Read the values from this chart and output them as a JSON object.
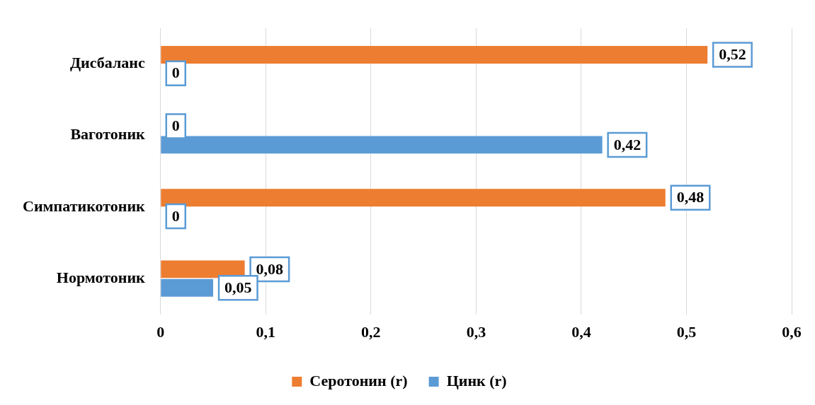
{
  "chart_data": {
    "type": "bar",
    "orientation": "horizontal",
    "categories": [
      "Дисбаланс",
      "Ваготоник",
      "Симпатикотоник",
      "Нормотоник"
    ],
    "series": [
      {
        "name": "Серотонин (r)",
        "color": "#ed7d31",
        "values": [
          0.52,
          0,
          0.48,
          0.08
        ],
        "value_labels": [
          "0,52",
          "0",
          "0,48",
          "0,08"
        ]
      },
      {
        "name": "Цинк (r)",
        "color": "#5b9bd5",
        "values": [
          0,
          0.42,
          0,
          0.05
        ],
        "value_labels": [
          "0",
          "0,42",
          "0",
          "0,05"
        ]
      }
    ],
    "xlim": [
      0,
      0.6
    ],
    "xticks": [
      0,
      {
        "value": 0.1,
        "label": "0,1"
      },
      {
        "value": 0.2,
        "label": "0,2"
      },
      {
        "value": 0.3,
        "label": "0,3"
      },
      {
        "value": 0.4,
        "label": "0,4"
      },
      {
        "value": 0.5,
        "label": "0,5"
      },
      {
        "value": 0.6,
        "label": "0,6"
      }
    ],
    "grid": "x",
    "legend": "bottom"
  }
}
